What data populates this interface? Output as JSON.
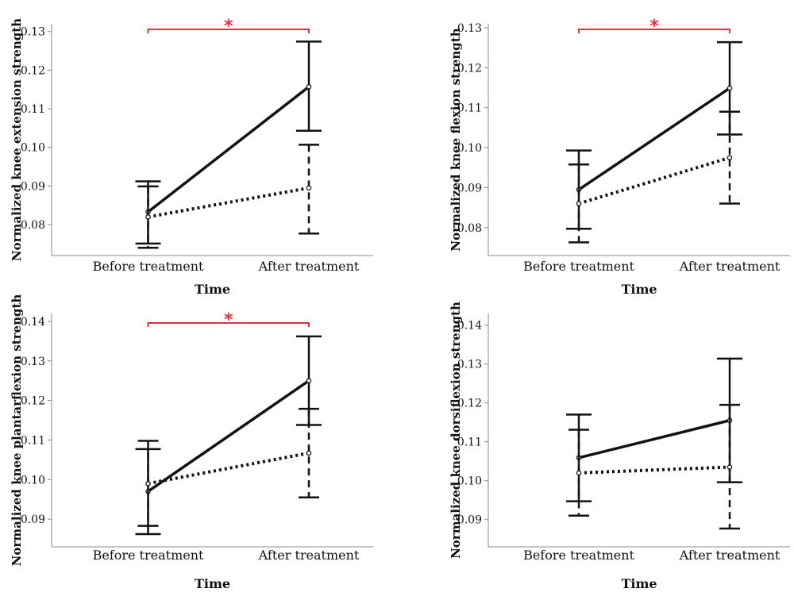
{
  "colors": {
    "series": "#111111",
    "significance": "#e0303e",
    "axis": "#888888"
  },
  "chart_data": [
    {
      "type": "line",
      "ylabel": "Normalized knee extension strength",
      "xlabel": "Time",
      "categories": [
        "Before treatment",
        "After treatment"
      ],
      "ylim": [
        0.072,
        0.132
      ],
      "yticks": [
        "0.08",
        "0.09",
        "0.10",
        "0.11",
        "0.12",
        "0.13"
      ],
      "significance": "*",
      "series": [
        {
          "style": "solid",
          "values": [
            0.0833,
            0.1157
          ],
          "ci_low": [
            0.0751,
            0.1043
          ],
          "ci_high": [
            0.0912,
            0.1274
          ]
        },
        {
          "style": "dotted",
          "values": [
            0.082,
            0.0895
          ],
          "ci_low": [
            0.074,
            0.0777
          ],
          "ci_high": [
            0.0899,
            0.1007
          ]
        }
      ]
    },
    {
      "type": "line",
      "ylabel": "Normalized knee flexion strength",
      "xlabel": "Time",
      "categories": [
        "Before treatment",
        "After treatment"
      ],
      "ylim": [
        0.073,
        0.131
      ],
      "yticks": [
        "0.08",
        "0.09",
        "0.10",
        "0.11",
        "0.12",
        "0.13"
      ],
      "significance": "*",
      "series": [
        {
          "style": "solid",
          "values": [
            0.0895,
            0.1149
          ],
          "ci_low": [
            0.0797,
            0.1033
          ],
          "ci_high": [
            0.0993,
            0.1264
          ]
        },
        {
          "style": "dotted",
          "values": [
            0.086,
            0.0975
          ],
          "ci_low": [
            0.0763,
            0.086
          ],
          "ci_high": [
            0.0958,
            0.109
          ]
        }
      ]
    },
    {
      "type": "line",
      "ylabel": "Normalized knee plantarflexion strength",
      "xlabel": "Time",
      "categories": [
        "Before treatment",
        "After treatment"
      ],
      "ylim": [
        0.083,
        0.142
      ],
      "yticks": [
        "0.09",
        "0.10",
        "0.11",
        "0.12",
        "0.13",
        "0.14"
      ],
      "significance": "*",
      "series": [
        {
          "style": "solid",
          "values": [
            0.097,
            0.125
          ],
          "ci_low": [
            0.0862,
            0.1138
          ],
          "ci_high": [
            0.1077,
            0.1362
          ]
        },
        {
          "style": "dotted",
          "values": [
            0.099,
            0.1067
          ],
          "ci_low": [
            0.0883,
            0.0955
          ],
          "ci_high": [
            0.1098,
            0.1179
          ]
        }
      ]
    },
    {
      "type": "line",
      "ylabel": "Normalized knee dorsiflexion strength",
      "xlabel": "Time",
      "categories": [
        "Before treatment",
        "After treatment"
      ],
      "ylim": [
        0.083,
        0.143
      ],
      "yticks": [
        "0.09",
        "0.10",
        "0.11",
        "0.12",
        "0.13",
        "0.14"
      ],
      "significance": "",
      "series": [
        {
          "style": "solid",
          "values": [
            0.1059,
            0.1155
          ],
          "ci_low": [
            0.0947,
            0.0996
          ],
          "ci_high": [
            0.117,
            0.1314
          ]
        },
        {
          "style": "dotted",
          "values": [
            0.102,
            0.1035
          ],
          "ci_low": [
            0.091,
            0.0877
          ],
          "ci_high": [
            0.1131,
            0.1195
          ]
        }
      ]
    }
  ]
}
